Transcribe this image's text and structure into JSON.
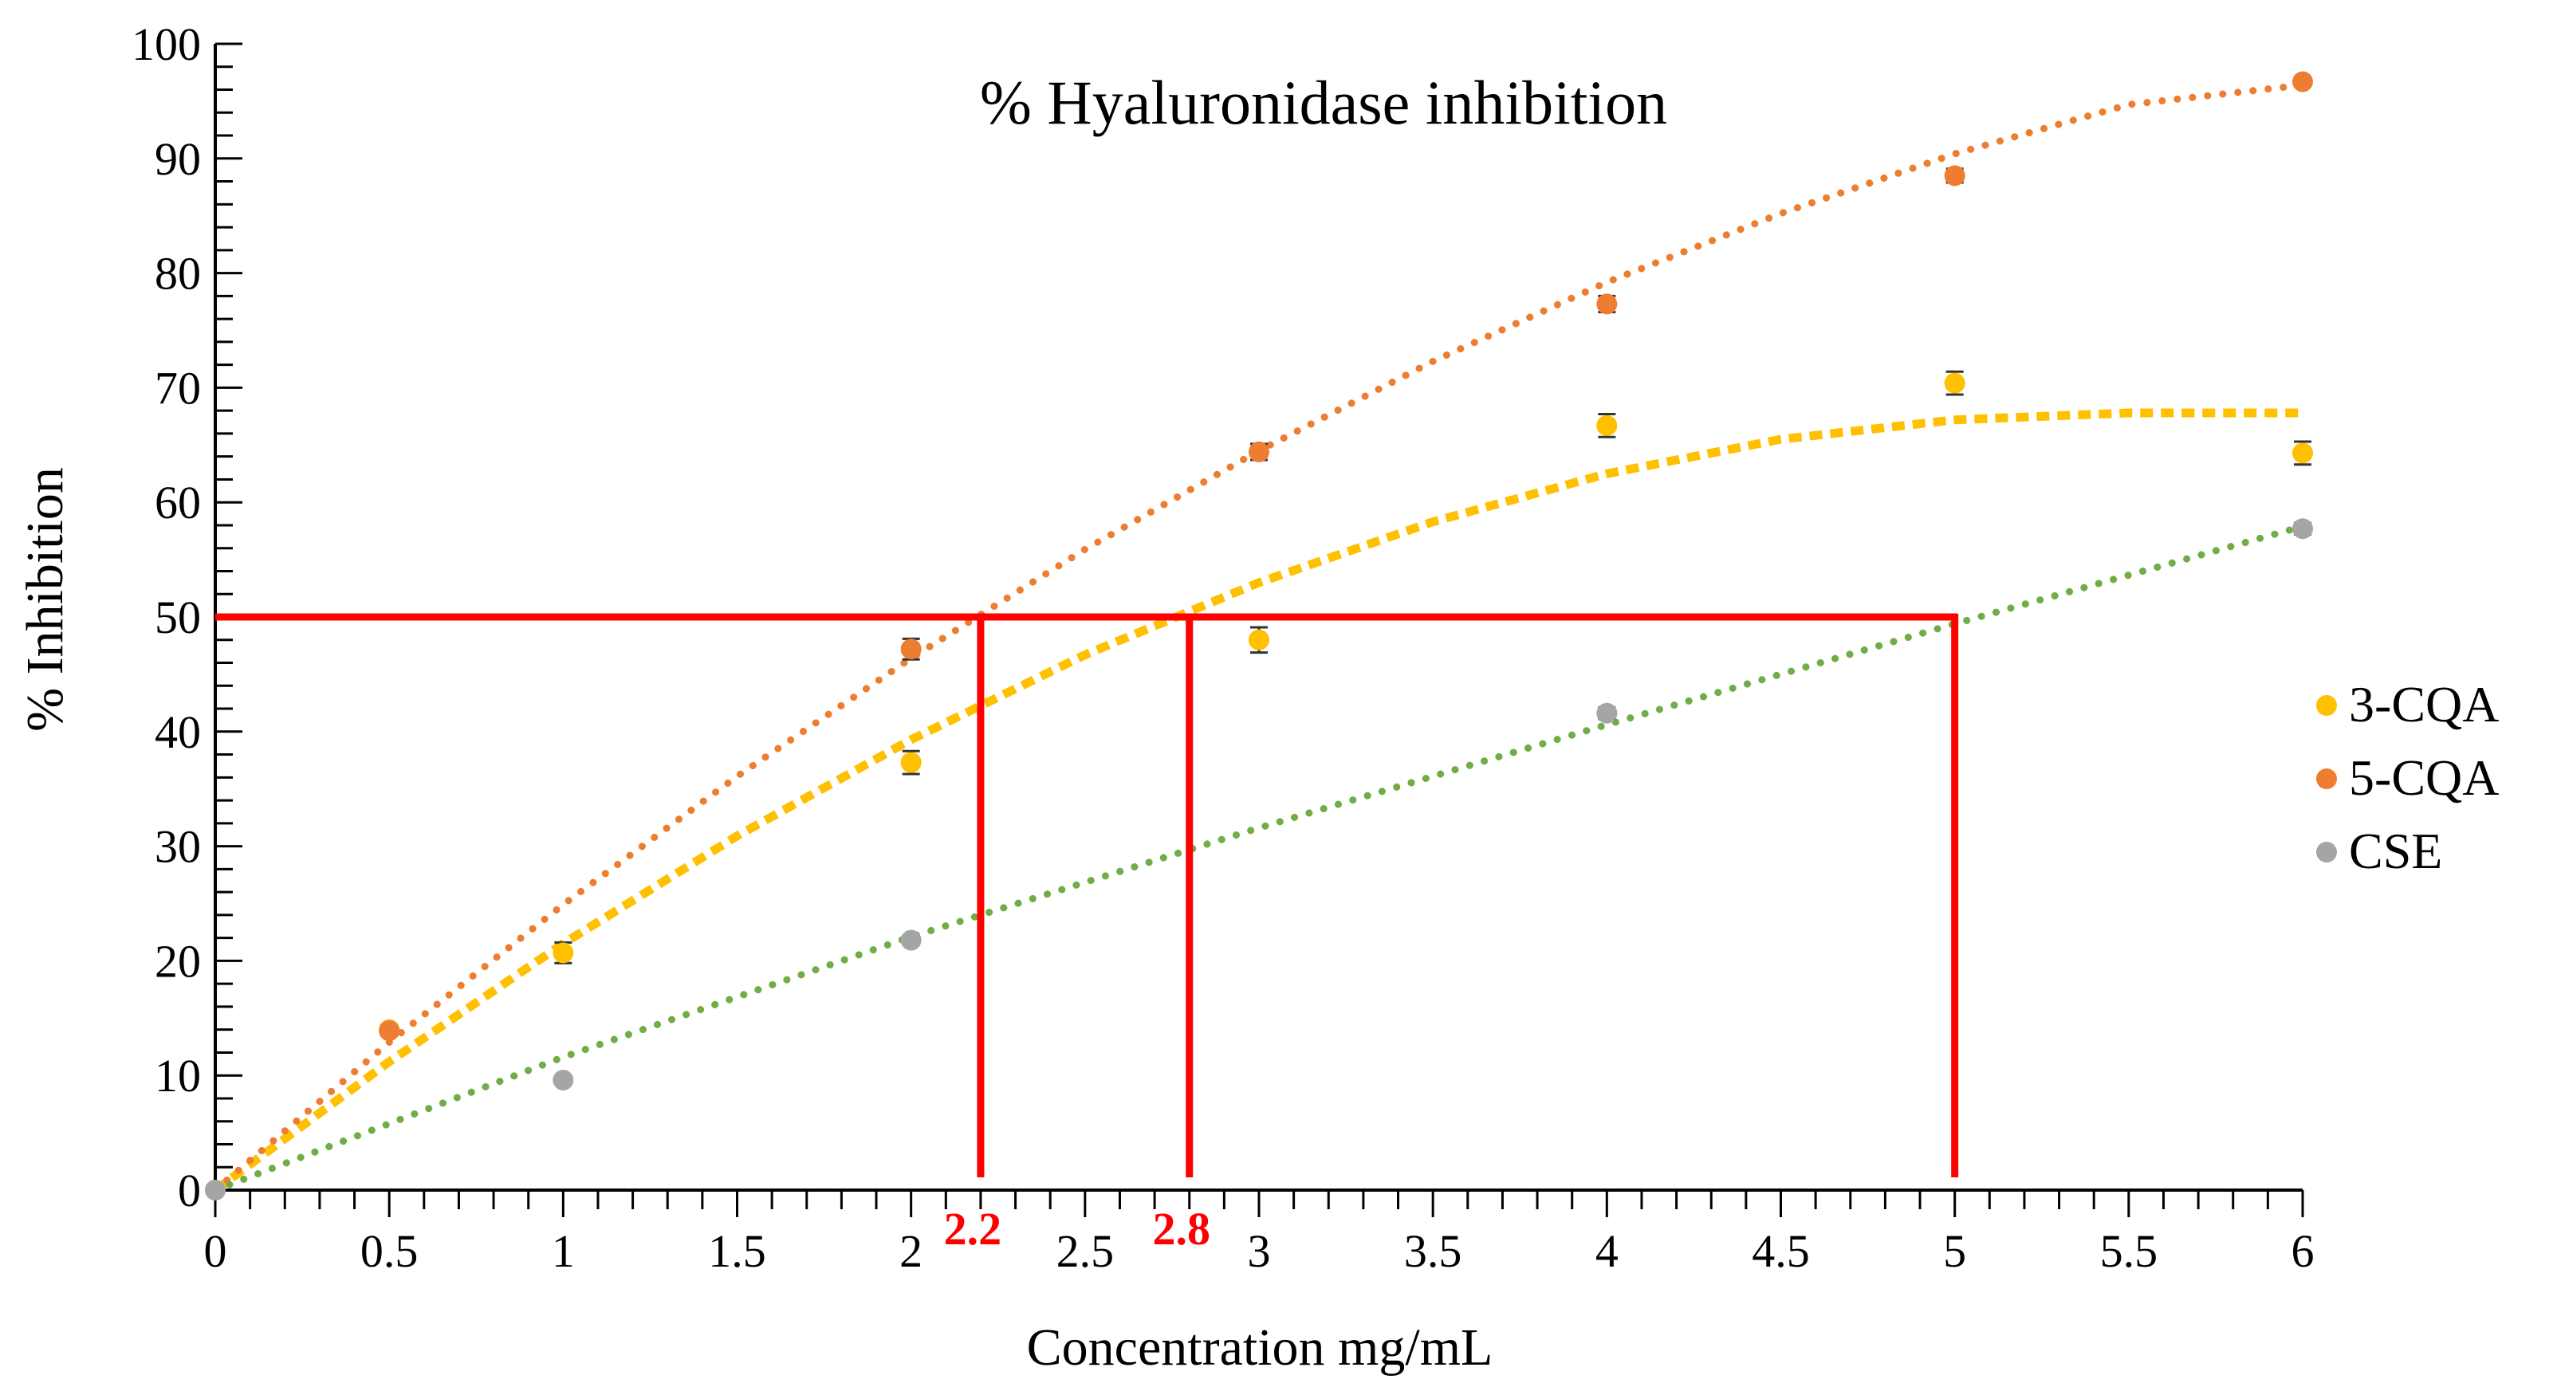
{
  "chart_data": {
    "type": "scatter",
    "title": "% Hyaluronidase inhibition",
    "xlabel": "Concentration mg/mL",
    "ylabel": "% Inhibition",
    "xlim": [
      0,
      6
    ],
    "ylim": [
      0,
      100
    ],
    "x_ticks": [
      "0",
      "0.5",
      "1",
      "1.5",
      "2",
      "2.5",
      "3",
      "3.5",
      "4",
      "4.5",
      "5",
      "5.5",
      "6"
    ],
    "y_ticks": [
      "0",
      "10",
      "20",
      "30",
      "40",
      "50",
      "60",
      "70",
      "80",
      "90",
      "100"
    ],
    "grid": false,
    "legend_position": "right",
    "series": [
      {
        "name": "3-CQA",
        "color": "#FFC000",
        "points": [
          [
            0,
            0
          ],
          [
            0.5,
            14
          ],
          [
            1,
            20.7
          ],
          [
            2,
            37.3
          ],
          [
            3,
            48
          ],
          [
            4,
            66.7
          ],
          [
            5,
            70.4
          ],
          [
            6,
            64.3
          ]
        ],
        "error": [
          0.3,
          0.4,
          0.9,
          1.0,
          1.1,
          1.0,
          1.0,
          1.0
        ],
        "trendline": [
          [
            0,
            0
          ],
          [
            0.5,
            11.2
          ],
          [
            1,
            21.5
          ],
          [
            1.5,
            30.9
          ],
          [
            2,
            39.3
          ],
          [
            2.5,
            46.7
          ],
          [
            3,
            53
          ],
          [
            3.5,
            58.3
          ],
          [
            4,
            62.5
          ],
          [
            4.5,
            65.5
          ],
          [
            5,
            67.2
          ],
          [
            5.5,
            67.8
          ],
          [
            6,
            67.8
          ]
        ],
        "trendline_style": "thick dashed"
      },
      {
        "name": "5-CQA",
        "color": "#ED7D31",
        "points": [
          [
            0,
            0
          ],
          [
            0.5,
            13.9
          ],
          [
            2,
            47.2
          ],
          [
            3,
            64.4
          ],
          [
            4,
            77.3
          ],
          [
            5,
            88.5
          ],
          [
            6,
            96.7
          ]
        ],
        "error": [
          0.3,
          0.4,
          0.9,
          0.7,
          0.7,
          0.6,
          0.4
        ],
        "trendline": [
          [
            0,
            0
          ],
          [
            0.5,
            12.9
          ],
          [
            1,
            24.9
          ],
          [
            1.5,
            36.1
          ],
          [
            2,
            46.4
          ],
          [
            2.5,
            55.9
          ],
          [
            3,
            64.5
          ],
          [
            3.5,
            72.3
          ],
          [
            4,
            79.2
          ],
          [
            4.5,
            85.2
          ],
          [
            5,
            90.4
          ],
          [
            5.5,
            94.7
          ],
          [
            6,
            96.4
          ]
        ],
        "trendline_style": "dotted"
      },
      {
        "name": "CSE",
        "color": "#70AD47",
        "marker_color": "#A5A5A5",
        "points": [
          [
            0,
            0
          ],
          [
            1,
            9.6
          ],
          [
            2,
            21.8
          ],
          [
            4,
            41.6
          ],
          [
            6,
            57.7
          ]
        ],
        "error": [
          0.2,
          0.3,
          0.4,
          0.5,
          0.5
        ],
        "trendline": [
          [
            0,
            0
          ],
          [
            1,
            11.6
          ],
          [
            2,
            22.1
          ],
          [
            3,
            31.6
          ],
          [
            4,
            40.6
          ],
          [
            5,
            49.4
          ],
          [
            6,
            57.9
          ]
        ],
        "trendline_style": "dotted"
      }
    ],
    "annotations": {
      "reference_line_y": 50,
      "reference_color": "#FF0000",
      "ic50_lines_x": [
        2.2,
        2.8,
        5
      ],
      "ic50_labels": [
        {
          "x": 2.2,
          "text": "2.2"
        },
        {
          "x": 2.8,
          "text": "2.8"
        }
      ]
    }
  }
}
